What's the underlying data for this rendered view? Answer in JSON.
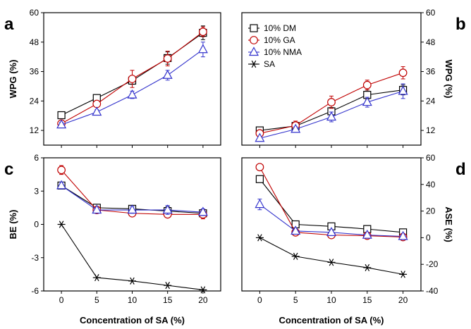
{
  "chart_data": [
    {
      "panel": "a",
      "type": "line",
      "x": [
        0,
        5,
        10,
        15,
        20
      ],
      "xlabel": "",
      "ylabel": "WPG (%)",
      "ylim": [
        6,
        60
      ],
      "yticks": [
        12,
        24,
        36,
        48,
        60
      ],
      "series": [
        {
          "name": "10% DM",
          "values": [
            18.2,
            25.2,
            32.3,
            41.5,
            51.8
          ],
          "errors": [
            0.6,
            0.8,
            1.5,
            2.5,
            2.8
          ],
          "marker": "square",
          "color": "#000000"
        },
        {
          "name": "10% GA",
          "values": [
            14.8,
            22.8,
            33.0,
            41.3,
            52.2
          ],
          "errors": [
            0.6,
            1.0,
            3.5,
            3.0,
            2.0
          ],
          "marker": "circle",
          "color": "#c00000"
        },
        {
          "name": "10% NMA",
          "values": [
            14.3,
            19.5,
            26.5,
            34.5,
            45.0
          ],
          "errors": [
            1.0,
            0.9,
            1.5,
            2.0,
            3.0
          ],
          "marker": "triangle",
          "color": "#3333cc"
        }
      ]
    },
    {
      "panel": "b",
      "type": "line",
      "x": [
        0,
        5,
        10,
        15,
        20
      ],
      "xlabel": "",
      "ylabel": "WPG (%)",
      "ylim": [
        6,
        60
      ],
      "yticks": [
        12,
        24,
        36,
        48,
        60
      ],
      "series": [
        {
          "name": "10% DM",
          "values": [
            12.0,
            13.8,
            19.8,
            26.5,
            28.5
          ],
          "errors": [
            0.6,
            0.8,
            1.5,
            2.0,
            2.0
          ],
          "marker": "square",
          "color": "#000000"
        },
        {
          "name": "10% GA",
          "values": [
            10.8,
            14.0,
            23.5,
            30.5,
            35.5
          ],
          "errors": [
            0.6,
            1.8,
            2.5,
            2.0,
            2.5
          ],
          "marker": "circle",
          "color": "#c00000"
        },
        {
          "name": "10% NMA",
          "values": [
            8.8,
            12.5,
            17.5,
            23.5,
            28.0
          ],
          "errors": [
            0.5,
            1.0,
            2.0,
            2.0,
            3.0
          ],
          "marker": "triangle",
          "color": "#3333cc"
        }
      ]
    },
    {
      "panel": "c",
      "type": "line",
      "x": [
        0,
        5,
        10,
        15,
        20
      ],
      "xlabel": "Concentration of SA (%)",
      "ylabel": "BE (%)",
      "ylim": [
        -6,
        6
      ],
      "yticks": [
        -6,
        -3,
        0,
        3,
        6
      ],
      "series": [
        {
          "name": "10% DM",
          "values": [
            3.5,
            1.5,
            1.4,
            1.2,
            1.0
          ],
          "errors": [
            0.3,
            0.2,
            0.3,
            0.4,
            0.3
          ],
          "marker": "square",
          "color": "#000000"
        },
        {
          "name": "10% GA",
          "values": [
            4.9,
            1.3,
            1.0,
            0.9,
            0.9
          ],
          "errors": [
            0.4,
            0.2,
            0.2,
            0.2,
            0.4
          ],
          "marker": "circle",
          "color": "#c00000"
        },
        {
          "name": "10% NMA",
          "values": [
            3.5,
            1.3,
            1.3,
            1.3,
            1.1
          ],
          "errors": [
            0.3,
            0.2,
            0.3,
            0.4,
            0.3
          ],
          "marker": "triangle",
          "color": "#3333cc"
        },
        {
          "name": "SA",
          "values": [
            0.0,
            -4.8,
            -5.1,
            -5.5,
            -5.9
          ],
          "errors": [
            0,
            0,
            0,
            0,
            0
          ],
          "marker": "asterisk",
          "color": "#000000"
        }
      ]
    },
    {
      "panel": "d",
      "type": "line",
      "x": [
        0,
        5,
        10,
        15,
        20
      ],
      "xlabel": "Concentration of SA (%)",
      "ylabel": "ASE (%)",
      "ylim": [
        -40,
        60
      ],
      "yticks": [
        -40,
        -20,
        0,
        20,
        40,
        60
      ],
      "series": [
        {
          "name": "10% DM",
          "values": [
            44.0,
            10.0,
            8.5,
            6.5,
            4.0
          ],
          "errors": [
            1.5,
            1.0,
            2.5,
            2.0,
            2.5
          ],
          "marker": "square",
          "color": "#000000"
        },
        {
          "name": "10% GA",
          "values": [
            53.0,
            4.0,
            2.0,
            1.5,
            0.5
          ],
          "errors": [
            1.5,
            1.0,
            1.5,
            1.0,
            1.0
          ],
          "marker": "circle",
          "color": "#c00000"
        },
        {
          "name": "10% NMA",
          "values": [
            25.0,
            5.0,
            4.0,
            2.0,
            1.0
          ],
          "errors": [
            4.0,
            1.0,
            2.0,
            1.5,
            1.0
          ],
          "marker": "triangle",
          "color": "#3333cc"
        },
        {
          "name": "SA",
          "values": [
            0.0,
            -14.0,
            -18.5,
            -22.5,
            -27.5
          ],
          "errors": [
            0,
            0,
            0,
            0,
            0
          ],
          "marker": "asterisk",
          "color": "#000000"
        }
      ]
    }
  ],
  "panel_letters": [
    "a",
    "b",
    "c",
    "d"
  ],
  "x_tick_labels": [
    "0",
    "5",
    "10",
    "15",
    "20"
  ],
  "legend": [
    {
      "label": "10% DM",
      "marker": "square",
      "color": "#000000"
    },
    {
      "label": "10% GA",
      "marker": "circle",
      "color": "#c00000"
    },
    {
      "label": "10% NMA",
      "marker": "triangle",
      "color": "#3333cc"
    },
    {
      "label": "SA",
      "marker": "asterisk",
      "color": "#000000"
    }
  ],
  "legend_location": "top-left of panel b"
}
